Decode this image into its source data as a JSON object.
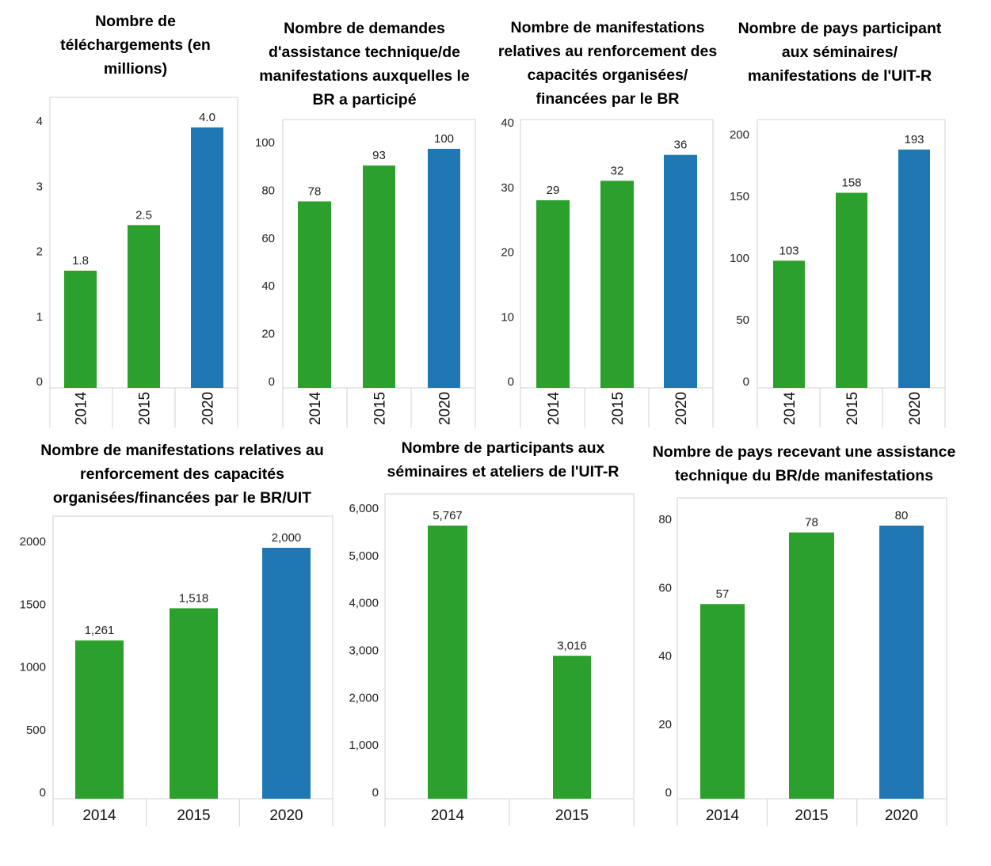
{
  "colors": {
    "actual": "#2ca02c",
    "target": "#1f77b4",
    "frame": "#d0d0d0"
  },
  "chart_data": [
    {
      "type": "bar",
      "title": "Nombre de téléchargements (en millions)",
      "title_lines": [
        "Nombre de",
        "téléchargements (en",
        "millions)"
      ],
      "categories": [
        "2014",
        "2015",
        "2020"
      ],
      "values": [
        1.8,
        2.5,
        4.0
      ],
      "value_labels": [
        "1.8",
        "2.5",
        "4.0"
      ],
      "series_kind": [
        "actual",
        "actual",
        "target"
      ],
      "ylim": [
        0,
        4.5
      ],
      "yticks": [
        0,
        1,
        2,
        3,
        4
      ],
      "ytick_labels": [
        "0",
        "1",
        "2",
        "3",
        "4"
      ],
      "x_rotated": true
    },
    {
      "type": "bar",
      "title": "Nombre de demandes d'assistance technique/de manifestations auxquelles le BR a participé",
      "title_lines": [
        "Nombre de demandes",
        "d'assistance technique/de",
        "manifestations auxquelles le",
        "BR a participé"
      ],
      "categories": [
        "2014",
        "2015",
        "2020"
      ],
      "values": [
        78,
        93,
        100
      ],
      "value_labels": [
        "78",
        "93",
        "100"
      ],
      "series_kind": [
        "actual",
        "actual",
        "target"
      ],
      "ylim": [
        0,
        112
      ],
      "yticks": [
        0,
        20,
        40,
        60,
        80,
        100
      ],
      "ytick_labels": [
        "0",
        "20",
        "40",
        "60",
        "80",
        "100"
      ],
      "x_rotated": true
    },
    {
      "type": "bar",
      "title": "Nombre de manifestations relatives au renforcement des capacités organisées/financées par le BR",
      "title_lines": [
        "Nombre de manifestations",
        "relatives au renforcement des",
        "capacités organisées/",
        "financées par le BR"
      ],
      "categories": [
        "2014",
        "2015",
        "2020"
      ],
      "values": [
        29,
        32,
        36
      ],
      "value_labels": [
        "29",
        "32",
        "36"
      ],
      "series_kind": [
        "actual",
        "actual",
        "target"
      ],
      "ylim": [
        0,
        40
      ],
      "yticks": [
        0,
        10,
        20,
        30,
        40
      ],
      "ytick_labels": [
        "0",
        "10",
        "20",
        "30",
        "40"
      ],
      "x_rotated": true
    },
    {
      "type": "bar",
      "title": "Nombre de pays participant aux séminaires/ manifestations de l'UIT-R",
      "title_lines": [
        "Nombre de pays participant",
        "aux séminaires/",
        "manifestations de l'UIT-R"
      ],
      "categories": [
        "2014",
        "2015",
        "2020"
      ],
      "values": [
        103,
        158,
        193
      ],
      "value_labels": [
        "103",
        "158",
        "193"
      ],
      "series_kind": [
        "actual",
        "actual",
        "target"
      ],
      "ylim": [
        0,
        217
      ],
      "yticks": [
        0,
        50,
        100,
        150,
        200
      ],
      "ytick_labels": [
        "0",
        "50",
        "100",
        "150",
        "200"
      ],
      "x_rotated": true
    },
    {
      "type": "bar",
      "title": "Nombre de manifestations relatives au renforcement des capacités organisées/financées par le BR/UIT",
      "title_lines": [
        "Nombre de manifestations relatives au",
        "renforcement des capacités",
        "organisées/financées par le BR/UIT"
      ],
      "categories": [
        "2014",
        "2015",
        "2020"
      ],
      "values": [
        1261,
        1518,
        2000
      ],
      "value_labels": [
        "1,261",
        "1,518",
        "2,000"
      ],
      "series_kind": [
        "actual",
        "actual",
        "target"
      ],
      "ylim": [
        0,
        2220
      ],
      "yticks": [
        0,
        500,
        1000,
        1500,
        2000
      ],
      "ytick_labels": [
        "0",
        "500",
        "1000",
        "1500",
        "2000"
      ],
      "x_rotated": false
    },
    {
      "type": "bar",
      "title": "Nombre de participants aux séminaires et ateliers de l'UIT-R",
      "title_lines": [
        "Nombre de participants aux",
        "séminaires et ateliers de l'UIT-R"
      ],
      "categories": [
        "2014",
        "2015"
      ],
      "values": [
        5767,
        3016
      ],
      "value_labels": [
        "5,767",
        "3,016"
      ],
      "series_kind": [
        "actual",
        "actual"
      ],
      "ylim": [
        0,
        6450
      ],
      "yticks": [
        0,
        1000,
        2000,
        3000,
        4000,
        5000,
        6000
      ],
      "ytick_labels": [
        "0",
        "1,000",
        "2,000",
        "3,000",
        "4,000",
        "5,000",
        "6,000"
      ],
      "x_rotated": false
    },
    {
      "type": "bar",
      "title": "Nombre de pays recevant une assistance technique du BR/de manifestations",
      "title_lines": [
        "Nombre de pays recevant une assistance",
        "technique du BR/de manifestations"
      ],
      "categories": [
        "2014",
        "2015",
        "2020"
      ],
      "values": [
        57,
        78,
        80
      ],
      "value_labels": [
        "57",
        "78",
        "80"
      ],
      "series_kind": [
        "actual",
        "actual",
        "target"
      ],
      "ylim": [
        0,
        87
      ],
      "yticks": [
        0,
        20,
        40,
        60,
        80
      ],
      "ytick_labels": [
        "0",
        "20",
        "40",
        "60",
        "80"
      ],
      "x_rotated": false
    }
  ]
}
